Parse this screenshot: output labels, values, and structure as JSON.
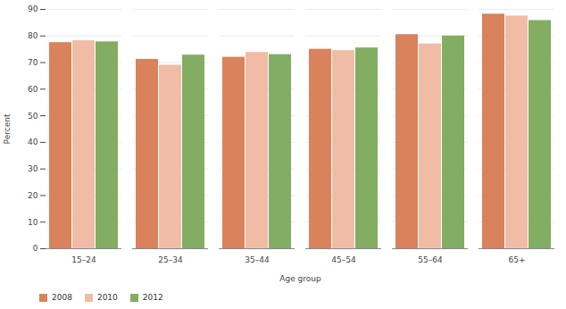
{
  "chart_data": {
    "type": "bar",
    "x_label": "Age group",
    "y_label": "Percent",
    "categories": [
      "15–24",
      "25–34",
      "35–44",
      "45–54",
      "55–64",
      "65+"
    ],
    "series": [
      {
        "name": "2008",
        "color": "#d9825b",
        "values": [
          77.5,
          71.2,
          72.0,
          75.0,
          80.5,
          88.2
        ]
      },
      {
        "name": "2010",
        "color": "#f0bca5",
        "values": [
          78.2,
          69.0,
          73.8,
          74.5,
          77.0,
          87.5
        ]
      },
      {
        "name": "2012",
        "color": "#82ad62",
        "values": [
          77.8,
          72.8,
          73.0,
          75.5,
          80.0,
          85.8
        ]
      }
    ],
    "ylim": [
      0,
      90
    ],
    "yticks": [
      0,
      10,
      20,
      30,
      40,
      50,
      60,
      70,
      80,
      90
    ],
    "grid": true,
    "legend": "bottom-left"
  }
}
